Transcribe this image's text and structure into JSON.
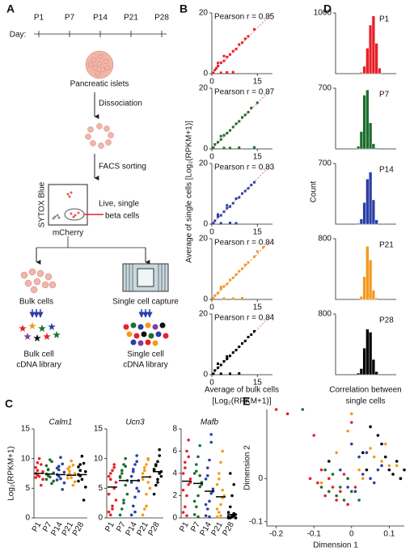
{
  "panel_labels": [
    "A",
    "B",
    "C",
    "D",
    "E"
  ],
  "diagram": {
    "day_label": "Day:",
    "days": [
      {
        "label": "P1",
        "color": "#e8202a"
      },
      {
        "label": "P7",
        "color": "#1d6e2f"
      },
      {
        "label": "P14",
        "color": "#2b3fa8"
      },
      {
        "label": "P21",
        "color": "#f39a1c"
      },
      {
        "label": "P28",
        "color": "#111111"
      }
    ],
    "islets": "Pancreatic islets",
    "dissociation": "Dissociation",
    "facs": "FACS sorting",
    "sytox": "SYTOX Blue",
    "mcherry": "mCherry",
    "live": [
      "Live, single",
      "beta cells"
    ],
    "bulk": "Bulk cells",
    "capture": "Single cell capture",
    "bulk_library": [
      "Bulk cell",
      "cDNA library"
    ],
    "single_library": [
      "Single cell",
      "cDNA library"
    ]
  },
  "shared": {
    "b_ylabel": "Average of single cells [Log₂(RPKM+1)]",
    "b_xlabel": [
      "Average of bulk cells",
      "[Log₂(RPKM+1)]"
    ],
    "d_ylabel": "Count",
    "d_xlabel": [
      "Correlation between",
      "single cells"
    ],
    "c_ylabel": "Log₂(RPKM+1)"
  },
  "chart_data": [
    {
      "type": "scatter",
      "annotation": "Pearson r = 0.85",
      "color": "#e8202a",
      "diagonal": true,
      "xlim": [
        0,
        20
      ],
      "ylim": [
        0,
        20
      ],
      "xticks": [
        0,
        15
      ],
      "yticks": [
        0,
        20
      ],
      "x": [
        0.5,
        1,
        1.5,
        2,
        3,
        4,
        5,
        6,
        7,
        8,
        9,
        10,
        11,
        12,
        14,
        3,
        5,
        7,
        2,
        4
      ],
      "y": [
        0.3,
        1.2,
        1.8,
        2.5,
        3.6,
        4.2,
        5.5,
        6.3,
        7.4,
        8.1,
        9.6,
        10.2,
        11.5,
        12.3,
        14.6,
        0.3,
        0.4,
        0.5,
        3.5,
        5.8
      ]
    },
    {
      "type": "scatter",
      "annotation": "Pearson r = 0.87",
      "color": "#1d6e2f",
      "diagonal": true,
      "xlim": [
        0,
        20
      ],
      "ylim": [
        0,
        20
      ],
      "xticks": [
        0,
        15
      ],
      "yticks": [
        0,
        20
      ],
      "x": [
        0.5,
        1,
        2,
        3,
        4,
        5,
        6,
        7,
        8,
        9,
        10,
        11,
        12,
        13,
        15,
        4,
        6,
        9,
        3,
        14
      ],
      "y": [
        0.4,
        1.5,
        2.2,
        3.1,
        4.5,
        5.2,
        6.1,
        7.2,
        8.3,
        9.1,
        10.4,
        11.2,
        12.1,
        13.5,
        15.2,
        0.3,
        0.3,
        0.4,
        4.2,
        0.5
      ]
    },
    {
      "type": "scatter",
      "annotation": "Pearson r = 0.83",
      "color": "#2b3fa8",
      "diagonal": true,
      "xlim": [
        0,
        20
      ],
      "ylim": [
        0,
        20
      ],
      "xticks": [
        0,
        15
      ],
      "yticks": [
        0,
        20
      ],
      "x": [
        0.5,
        1,
        2,
        3,
        4,
        5,
        6,
        7,
        8,
        9,
        10,
        11,
        12,
        13,
        14,
        3,
        6,
        8,
        2,
        5
      ],
      "y": [
        0.3,
        1.1,
        2.4,
        2.9,
        4.1,
        5.3,
        5.8,
        6.9,
        8.4,
        8.8,
        10.1,
        10.9,
        11.8,
        12.9,
        13.8,
        0.3,
        0.4,
        0.3,
        3.2,
        6.2
      ]
    },
    {
      "type": "scatter",
      "annotation": "Pearson r = 0.84",
      "color": "#f39a1c",
      "diagonal": true,
      "xlim": [
        0,
        20
      ],
      "ylim": [
        0,
        20
      ],
      "xticks": [
        0,
        15
      ],
      "yticks": [
        0,
        20
      ],
      "x": [
        0.5,
        1,
        2,
        3,
        4,
        5,
        6,
        7,
        8,
        9,
        10,
        11,
        12,
        14,
        17,
        4,
        7,
        10,
        3,
        15
      ],
      "y": [
        0.4,
        1.3,
        2.1,
        3.4,
        4.3,
        5.1,
        6.4,
        7.1,
        8.2,
        9.3,
        10.1,
        11.4,
        12.2,
        14.1,
        17.2,
        0.3,
        0.3,
        0.4,
        4.1,
        15.8
      ]
    },
    {
      "type": "scatter",
      "annotation": "Pearson r = 0.84",
      "color": "#000000",
      "diagonal": true,
      "xlim": [
        0,
        20
      ],
      "ylim": [
        0,
        20
      ],
      "xticks": [
        0,
        15
      ],
      "yticks": [
        0,
        20
      ],
      "x": [
        0.5,
        1,
        2,
        3,
        4,
        5,
        6,
        7,
        8,
        9,
        10,
        11,
        12,
        13,
        14,
        3,
        6,
        9,
        2,
        5
      ],
      "y": [
        0.3,
        1.4,
        2.3,
        3.2,
        4.4,
        5.2,
        6.2,
        7.3,
        8.1,
        9.2,
        10.3,
        11.1,
        12.4,
        13.2,
        14.3,
        0.3,
        0.3,
        0.4,
        3.6,
        6.0
      ]
    },
    {
      "type": "histogram",
      "title": "P1",
      "color": "#e8202a",
      "xlim": [
        0,
        1
      ],
      "ylim": [
        0,
        1000
      ],
      "yticks": [
        1000
      ],
      "bins": [
        0.4,
        0.45,
        0.5,
        0.55,
        0.6,
        0.65,
        0.7,
        0.75
      ],
      "counts": [
        20,
        120,
        420,
        800,
        950,
        500,
        90
      ]
    },
    {
      "type": "histogram",
      "title": "P7",
      "color": "#1d6e2f",
      "xlim": [
        0,
        1
      ],
      "ylim": [
        0,
        700
      ],
      "yticks": [
        700
      ],
      "bins": [
        0.35,
        0.4,
        0.45,
        0.5,
        0.55,
        0.6,
        0.65,
        0.7
      ],
      "counts": [
        30,
        200,
        620,
        680,
        300,
        60,
        10
      ]
    },
    {
      "type": "histogram",
      "title": "P14",
      "color": "#2b3fa8",
      "xlim": [
        0,
        1
      ],
      "ylim": [
        0,
        700
      ],
      "yticks": [
        700
      ],
      "bins": [
        0.35,
        0.4,
        0.45,
        0.5,
        0.55,
        0.6,
        0.65,
        0.7
      ],
      "counts": [
        10,
        60,
        250,
        520,
        600,
        280,
        50
      ]
    },
    {
      "type": "histogram",
      "title": "P21",
      "color": "#f39a1c",
      "xlim": [
        0,
        1
      ],
      "ylim": [
        0,
        800
      ],
      "yticks": [
        800
      ],
      "bins": [
        0.4,
        0.45,
        0.5,
        0.55,
        0.6,
        0.65,
        0.7
      ],
      "counts": [
        40,
        300,
        700,
        520,
        120,
        20
      ]
    },
    {
      "type": "histogram",
      "title": "P28",
      "color": "#000000",
      "xlim": [
        0,
        1
      ],
      "ylim": [
        0,
        800
      ],
      "yticks": [
        800
      ],
      "bins": [
        0.35,
        0.4,
        0.45,
        0.5,
        0.55,
        0.6,
        0.65,
        0.7
      ],
      "counts": [
        20,
        80,
        350,
        600,
        560,
        200,
        40
      ]
    },
    {
      "type": "strip",
      "title": "Calm1",
      "ylim": [
        0,
        15
      ],
      "yticks": [
        0,
        5,
        10,
        15
      ],
      "medians": [
        7.5,
        7.4,
        7.3,
        7.2,
        7.3
      ],
      "series": [
        {
          "name": "P1",
          "color": "#e8202a",
          "values": [
            7.5,
            8,
            7,
            9,
            6.5,
            8.5,
            7.2,
            10,
            5.5,
            7.8,
            6.8,
            9.3
          ]
        },
        {
          "name": "P7",
          "color": "#1d6e2f",
          "values": [
            7.4,
            8.2,
            6.9,
            9.5,
            6.2,
            8.8,
            7.1,
            9.8,
            5.8,
            7.6,
            6.5,
            8.1
          ]
        },
        {
          "name": "P14",
          "color": "#2b3fa8",
          "values": [
            7.3,
            8.1,
            6.6,
            9.1,
            5.9,
            8.4,
            7.0,
            10.2,
            4.8,
            7.7,
            6.4,
            8.7
          ]
        },
        {
          "name": "P21",
          "color": "#f39a1c",
          "values": [
            7.2,
            7.9,
            6.8,
            8.9,
            6.1,
            8.3,
            7.4,
            9.6,
            5.5,
            7.5,
            6.7,
            8.6
          ]
        },
        {
          "name": "P28",
          "color": "#000000",
          "values": [
            7.3,
            8.0,
            6.5,
            9.2,
            5.2,
            8.6,
            7.1,
            10.4,
            3.0,
            7.8,
            6.2,
            9.0
          ]
        }
      ]
    },
    {
      "type": "strip",
      "title": "Ucn3",
      "ylim": [
        0,
        15
      ],
      "yticks": [
        0,
        5,
        10,
        15
      ],
      "medians": [
        5.2,
        6.3,
        6.3,
        6.9,
        7.8
      ],
      "series": [
        {
          "name": "P1",
          "color": "#e8202a",
          "values": [
            1,
            0.5,
            1.5,
            5,
            6,
            7,
            7.5,
            8,
            9,
            3,
            4,
            6.5,
            2,
            8.5
          ]
        },
        {
          "name": "P7",
          "color": "#1d6e2f",
          "values": [
            0.5,
            1.5,
            3,
            5.5,
            6.3,
            7,
            8,
            9,
            10,
            4,
            6.8,
            7.5,
            2.5,
            8.7
          ]
        },
        {
          "name": "P14",
          "color": "#2b3fa8",
          "values": [
            0.5,
            2,
            3.5,
            5,
            6.3,
            7,
            8.2,
            9,
            10.5,
            4.5,
            6,
            7.8,
            1,
            9.5
          ]
        },
        {
          "name": "P21",
          "color": "#f39a1c",
          "values": [
            0.5,
            1.5,
            4,
            6,
            6.9,
            7.5,
            8.5,
            9,
            10,
            5,
            6.5,
            8,
            2,
            9.8
          ]
        },
        {
          "name": "P28",
          "color": "#000000",
          "values": [
            4,
            5.5,
            6.5,
            7.5,
            7.8,
            8.2,
            8.8,
            9.5,
            10.5,
            7,
            8,
            9,
            6,
            11.5
          ]
        }
      ]
    },
    {
      "type": "strip",
      "title": "Mafb",
      "ylim": [
        0,
        8
      ],
      "yticks": [
        0,
        2,
        4,
        6,
        8
      ],
      "medians": [
        3.3,
        3.1,
        2.4,
        1.9,
        0.3
      ],
      "series": [
        {
          "name": "P1",
          "color": "#e8202a",
          "values": [
            0.5,
            1,
            2,
            3,
            3.5,
            4,
            5,
            6,
            7,
            3.2,
            2.5,
            4.5,
            0.2,
            5.5
          ]
        },
        {
          "name": "P7",
          "color": "#1d6e2f",
          "values": [
            0.3,
            1,
            2,
            2.8,
            3.2,
            4,
            4.8,
            5.5,
            6.5,
            3,
            1.5,
            4.2,
            0.1,
            3.8
          ]
        },
        {
          "name": "P14",
          "color": "#2b3fa8",
          "values": [
            0.2,
            0.8,
            1.5,
            2.2,
            2.6,
            3.5,
            4.5,
            5.2,
            6.8,
            2.4,
            1.2,
            3.8,
            0.1,
            7.5
          ]
        },
        {
          "name": "P21",
          "color": "#f39a1c",
          "values": [
            0.1,
            0.5,
            1.2,
            1.8,
            2,
            3,
            4,
            5,
            6,
            1.9,
            0.8,
            3.5,
            0.2,
            2.5
          ]
        },
        {
          "name": "P28",
          "color": "#000000",
          "values": [
            0,
            0,
            0.1,
            0.2,
            0.3,
            0.5,
            1,
            2,
            3,
            0,
            0.1,
            4,
            0.2,
            0.4
          ]
        }
      ]
    },
    {
      "type": "scatter",
      "xlabel": "Dimension 1",
      "ylabel": "Dimension 2",
      "xlim": [
        -0.225,
        0.14
      ],
      "ylim": [
        -0.11,
        0.16
      ],
      "xticks": [
        -0.2,
        -0.1,
        0,
        0.1
      ],
      "yticks": [
        -0.1,
        0
      ],
      "series": [
        {
          "color": "#e8202a",
          "x": [
            -0.2,
            -0.17,
            -0.1,
            -0.08,
            -0.06,
            -0.05,
            -0.04,
            -0.03,
            -0.02,
            -0.07,
            -0.09,
            0.0,
            -0.01,
            -0.11,
            0.01
          ],
          "y": [
            0.16,
            0.15,
            0.1,
            0.02,
            0.0,
            -0.02,
            -0.05,
            -0.03,
            0.01,
            -0.04,
            -0.01,
            0.13,
            -0.06,
            0.0,
            -0.02
          ]
        },
        {
          "color": "#1d6e2f",
          "x": [
            -0.13,
            -0.07,
            -0.06,
            -0.04,
            -0.03,
            -0.02,
            -0.05,
            -0.08,
            0.0,
            -0.01,
            0.02
          ],
          "y": [
            0.16,
            0.02,
            -0.03,
            -0.04,
            -0.02,
            -0.05,
            0.01,
            -0.02,
            -0.03,
            0.0,
            -0.05
          ]
        },
        {
          "color": "#2b3fa8",
          "x": [
            -0.03,
            0.0,
            0.02,
            0.03,
            0.05,
            0.07,
            0.04,
            0.06,
            -0.01,
            0.08,
            0.01
          ],
          "y": [
            0.02,
            0.08,
            0.05,
            0.01,
            0.0,
            0.02,
            0.06,
            -0.01,
            -0.02,
            0.03,
            -0.03
          ]
        },
        {
          "color": "#f39a1c",
          "x": [
            0.0,
            -0.01,
            0.03,
            0.05,
            0.08,
            0.1,
            0.12,
            -0.04,
            0.06,
            0.02,
            0.09,
            -0.08
          ],
          "y": [
            0.15,
            0.11,
            0.0,
            0.07,
            0.04,
            0.03,
            0.03,
            0.06,
            0.05,
            0.02,
            0.08,
            -0.01
          ]
        },
        {
          "color": "#000000",
          "x": [
            0.05,
            0.07,
            0.1,
            0.12,
            0.13,
            0.09,
            0.08,
            0.11,
            0.04,
            -0.06,
            0.03,
            0.14
          ],
          "y": [
            0.12,
            0.1,
            0.02,
            0.04,
            0.0,
            0.05,
            0.08,
            0.01,
            0.02,
            0.04,
            0.06,
            0.02
          ]
        }
      ]
    }
  ]
}
